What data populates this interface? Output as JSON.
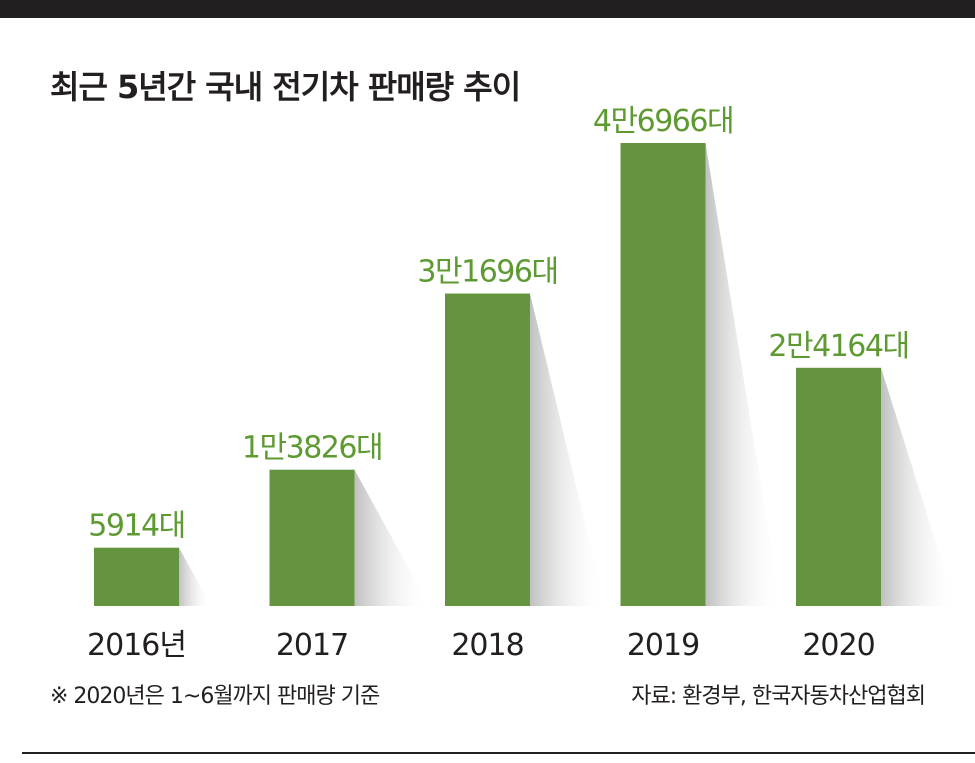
{
  "chart_data": {
    "type": "bar",
    "title": "최근 5년간 국내 전기차 판매량 추이",
    "categories": [
      "2016년",
      "2017",
      "2018",
      "2019",
      "2020"
    ],
    "values": [
      5914,
      13826,
      31696,
      46966,
      24164
    ],
    "value_labels": [
      "5914대",
      "1만3826대",
      "3만1696대",
      "4만6966대",
      "2만4164대"
    ],
    "xlabel": "",
    "ylabel": "",
    "grid": false,
    "legend": "none"
  },
  "footnote": "※  2020년은 1~6월까지 판매량 기준",
  "source": "자료: 환경부, 한국자동차산업협회",
  "colors": {
    "bar": "#64953e",
    "label": "#5e9a32",
    "text": "#231f20",
    "shadow": "#c4c4c4"
  }
}
